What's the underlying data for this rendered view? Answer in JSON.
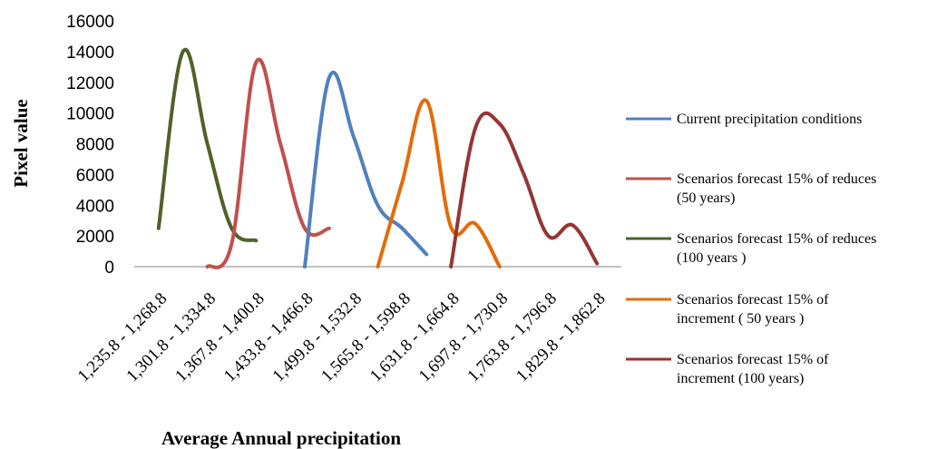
{
  "chart_data": {
    "type": "line",
    "xlabel": "Average Annual precipitation",
    "ylabel": "Pixel value",
    "ylim": [
      0,
      16000
    ],
    "yticks": [
      0,
      2000,
      4000,
      6000,
      8000,
      10000,
      12000,
      14000,
      16000
    ],
    "categories": [
      "1,235.8 - 1,268.8",
      "1,301.8 - 1,334.8",
      "1,367.8 - 1,400.8",
      "1,433.8 - 1,466.8",
      "1,499.8 - 1,532.8",
      "1,565.8 - 1,598.8",
      "1,631.8 - 1,664.8",
      "1,697.8 - 1,730.8",
      "1,763.8 - 1,796.8",
      "1,829.8 - 1,862.8"
    ],
    "grid": false,
    "legend_position": "right",
    "series": [
      {
        "name": "Scenarios forecast 15% of reduces (100  years )",
        "legend_lines": [
          "Scenarios forecast 15% of reduces",
          "(100  years )"
        ],
        "color": "#4f6228",
        "points": [
          [
            0,
            2500
          ],
          [
            0.5,
            14000
          ],
          [
            1,
            8000
          ],
          [
            1.5,
            2500
          ],
          [
            2,
            1700
          ]
        ]
      },
      {
        "name": "Scenarios forecast 15% of reduces (50 years)",
        "legend_lines": [
          "Scenarios forecast 15% of reduces",
          "(50 years)"
        ],
        "color": "#c0504d",
        "points": [
          [
            1,
            0
          ],
          [
            1.5,
            1500
          ],
          [
            2,
            13300
          ],
          [
            2.5,
            8000
          ],
          [
            3,
            2500
          ],
          [
            3.5,
            2500
          ]
        ]
      },
      {
        "name": "Current precipitation conditions",
        "legend_lines": [
          "Current precipitation conditions"
        ],
        "color": "#4f81bd",
        "points": [
          [
            3,
            0
          ],
          [
            3.5,
            12300
          ],
          [
            4,
            8500
          ],
          [
            4.5,
            4000
          ],
          [
            5,
            2500
          ],
          [
            5.5,
            800
          ]
        ]
      },
      {
        "name": "Scenarios forecast 15% of increment ( 50 years )",
        "legend_lines": [
          "Scenarios forecast 15% of",
          "increment ( 50 years )"
        ],
        "color": "#e36c09",
        "points": [
          [
            4.5,
            0
          ],
          [
            5,
            5500
          ],
          [
            5.5,
            10800
          ],
          [
            6,
            2600
          ],
          [
            6.5,
            2800
          ],
          [
            7,
            0
          ]
        ]
      },
      {
        "name": "Scenarios forecast 15% of increment (100 years)",
        "legend_lines": [
          "Scenarios forecast 15% of",
          "increment (100 years)"
        ],
        "color": "#943634",
        "points": [
          [
            6,
            0
          ],
          [
            6.5,
            9000
          ],
          [
            7,
            9300
          ],
          [
            7.5,
            6000
          ],
          [
            8,
            2000
          ],
          [
            8.5,
            2700
          ],
          [
            9,
            200
          ]
        ]
      }
    ],
    "legend_order": [
      2,
      1,
      0,
      3,
      4
    ]
  }
}
